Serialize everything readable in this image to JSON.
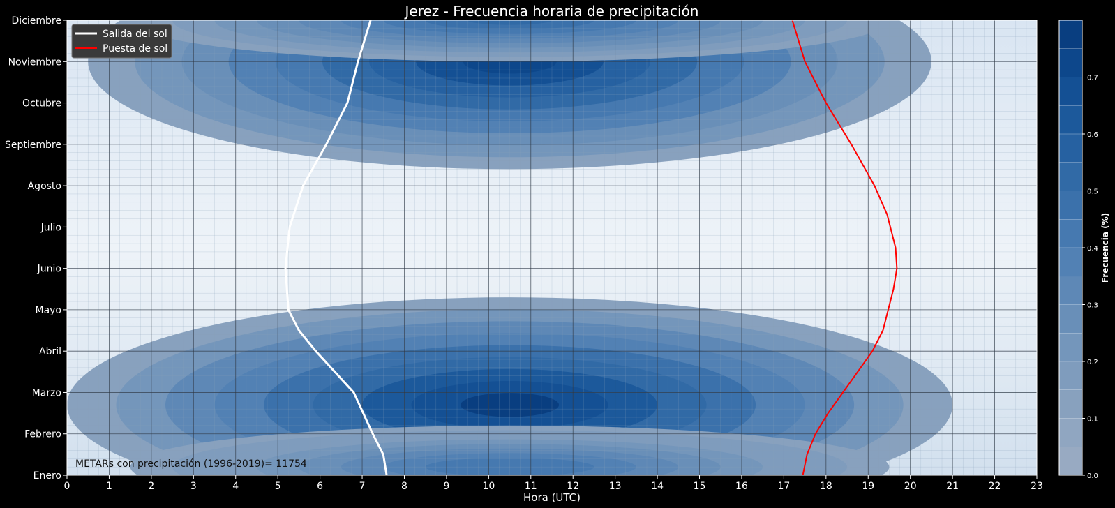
{
  "chart_data": {
    "type": "heatmap",
    "title": "Jerez  - Frecuencia horaria de precipitación",
    "xlabel": "Hora (UTC)",
    "ylabel": "",
    "x_ticks": [
      0,
      1,
      2,
      3,
      4,
      5,
      6,
      7,
      8,
      9,
      10,
      11,
      12,
      13,
      14,
      15,
      16,
      17,
      18,
      19,
      20,
      21,
      22,
      23
    ],
    "xlim": [
      0,
      23
    ],
    "y_ticks": [
      "Enero",
      "Febrero",
      "Marzo",
      "Abril",
      "Mayo",
      "Junio",
      "Julio",
      "Agosto",
      "Septiembre",
      "Octubre",
      "Noviembre",
      "Diciembre"
    ],
    "ylim": [
      0,
      11
    ],
    "colorbar": {
      "label": "Frecuencia  (%)",
      "ticks": [
        "0.0",
        "0.1",
        "0.2",
        "0.3",
        "0.4",
        "0.5",
        "0.6",
        "0.7"
      ],
      "range": [
        0,
        0.8
      ],
      "levels": 16
    },
    "annotation": "METARs con precipitación (1996-2019)= 11754",
    "grid": true,
    "legend_position": "top-left",
    "series": [
      {
        "name": "Salida del sol",
        "color": "#ffffff",
        "x": [
          7.58,
          7.5,
          7.25,
          6.8,
          6.35,
          5.9,
          5.5,
          5.25,
          5.18,
          5.28,
          5.6,
          6.15,
          6.65,
          6.9,
          7.05,
          7.2
        ],
        "y": [
          0,
          0.5,
          1.0,
          2.0,
          2.5,
          3.0,
          3.5,
          4.0,
          5.0,
          6.0,
          7.0,
          8.0,
          9.0,
          10.0,
          10.5,
          11.0
        ]
      },
      {
        "name": "Puesta de sol",
        "color": "#ff0000",
        "x": [
          17.45,
          17.55,
          17.75,
          18.05,
          18.4,
          18.75,
          19.1,
          19.35,
          19.6,
          19.68,
          19.65,
          19.45,
          19.15,
          18.6,
          18.0,
          17.5,
          17.2
        ],
        "y": [
          0,
          0.5,
          1.0,
          1.5,
          2.0,
          2.5,
          3.0,
          3.5,
          4.5,
          5.0,
          5.5,
          6.3,
          7.0,
          8.0,
          9.0,
          10.0,
          11.0
        ]
      }
    ],
    "frequency_peaks": [
      {
        "month": "Marzo",
        "hour": 10.5,
        "value": 0.78
      },
      {
        "month": "Noviembre",
        "hour": 10.5,
        "value": 0.75
      }
    ]
  },
  "colors": {
    "background": "#000000",
    "text": "#ffffff",
    "colormap_low": "#c7c7c9",
    "colormap_high": "#08306b"
  }
}
